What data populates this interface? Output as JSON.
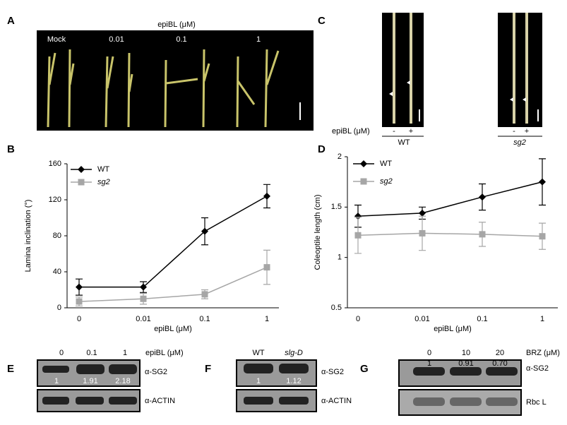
{
  "chart_data": [
    {
      "type": "line",
      "panel": "B",
      "categories": [
        "0",
        "0.01",
        "0.1",
        "1"
      ],
      "ylim": [
        0,
        160
      ],
      "yticks": [
        0,
        40,
        80,
        120,
        160
      ],
      "ylabel": "Lamina inclination (°)",
      "xlabel": "epiBL (μM)",
      "series": [
        {
          "name": "WT",
          "color": "#000000",
          "values": [
            23,
            23,
            85,
            124
          ],
          "errors": [
            9,
            6,
            15,
            13
          ]
        },
        {
          "name": "sg2",
          "color": "#a6a6a6",
          "values": [
            7,
            10,
            15,
            45
          ],
          "errors": [
            5,
            6,
            5,
            19
          ]
        }
      ]
    },
    {
      "type": "line",
      "panel": "D",
      "categories": [
        "0",
        "0.01",
        "0.1",
        "1"
      ],
      "ylim": [
        0.5,
        2
      ],
      "yticks": [
        0.5,
        1,
        1.5,
        2
      ],
      "ylabel": "Coleoptile  length (cm)",
      "xlabel": "epiBL (μM)",
      "series": [
        {
          "name": "WT",
          "color": "#000000",
          "values": [
            1.41,
            1.44,
            1.6,
            1.75
          ],
          "errors": [
            0.11,
            0.06,
            0.13,
            0.23
          ]
        },
        {
          "name": "sg2",
          "color": "#a6a6a6",
          "values": [
            1.22,
            1.24,
            1.23,
            1.21
          ],
          "errors": [
            0.18,
            0.17,
            0.12,
            0.13
          ]
        }
      ]
    }
  ],
  "panel_a": {
    "label": "A",
    "title": "epiBL (μM)",
    "doses": [
      "Mock",
      "0.01",
      "0.1",
      "1"
    ]
  },
  "panel_c": {
    "label": "C",
    "axis": "epiBL (μM)",
    "signs": [
      "-",
      "+",
      "-",
      "+"
    ],
    "genotypes": [
      "WT",
      "sg2"
    ]
  },
  "panel_e": {
    "label": "E",
    "doses": [
      "0",
      "0.1",
      "1"
    ],
    "unit": "epiBL (μM)",
    "quant": [
      "1",
      "1.91",
      "2.18"
    ],
    "rows": [
      "α-SG2",
      "α-ACTIN"
    ]
  },
  "panel_f": {
    "label": "F",
    "lanes": [
      "WT",
      "slg-D"
    ],
    "quant": [
      "1",
      "1.12"
    ],
    "rows": [
      "α-SG2",
      "α-ACTIN"
    ]
  },
  "panel_g": {
    "label": "G",
    "doses": [
      "0",
      "10",
      "20"
    ],
    "unit": "BRZ (μM)",
    "quant": [
      "1",
      "0.91",
      "0.70"
    ],
    "rows": [
      "α-SG2",
      "Rbc L"
    ]
  }
}
